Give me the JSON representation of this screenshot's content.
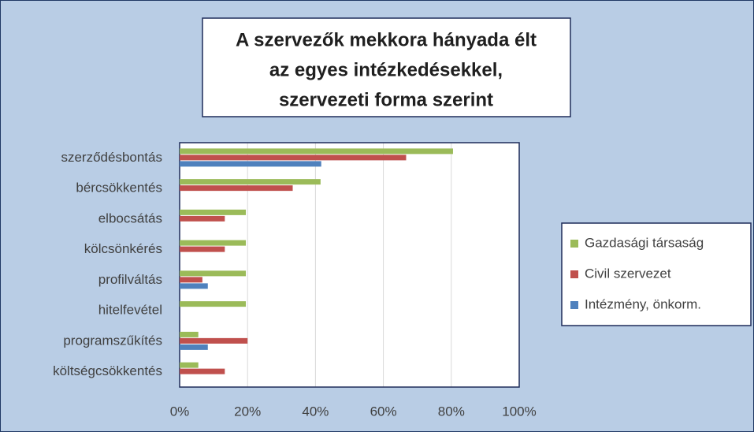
{
  "chart_data": {
    "type": "bar",
    "orientation": "horizontal",
    "title": [
      "A szervezők  mekkora hányada élt",
      "az egyes intézkedésekkel,",
      "szervezeti forma szerint"
    ],
    "categories": [
      "szerződésbontás",
      "bércsökkentés",
      "elbocsátás",
      "kölcsönkérés",
      "profilváltás",
      "hitelfevétel",
      "programszűkítés",
      "költségcsökkentés"
    ],
    "series": [
      {
        "name": "Gazdasági társaság",
        "color": "#9bbb59",
        "values": [
          80.5,
          41.5,
          19.5,
          19.5,
          19.5,
          19.5,
          5.5,
          5.5
        ]
      },
      {
        "name": "Civil szervezet",
        "color": "#c0504d",
        "values": [
          66.7,
          33.3,
          13.3,
          13.3,
          6.7,
          0,
          20,
          13.3
        ]
      },
      {
        "name": "Intézmény, önkorm.",
        "color": "#4f81bd",
        "values": [
          41.7,
          0,
          0,
          0,
          8.3,
          0,
          8.3,
          0
        ]
      }
    ],
    "xlim": [
      0,
      100
    ],
    "xticks": [
      {
        "value": 0,
        "label": "0%"
      },
      {
        "value": 20,
        "label": "20%"
      },
      {
        "value": 40,
        "label": "40%"
      },
      {
        "value": 60,
        "label": "60%"
      },
      {
        "value": 80,
        "label": "80%"
      },
      {
        "value": 100,
        "label": "100%"
      }
    ],
    "grid": true,
    "legend": "right"
  }
}
